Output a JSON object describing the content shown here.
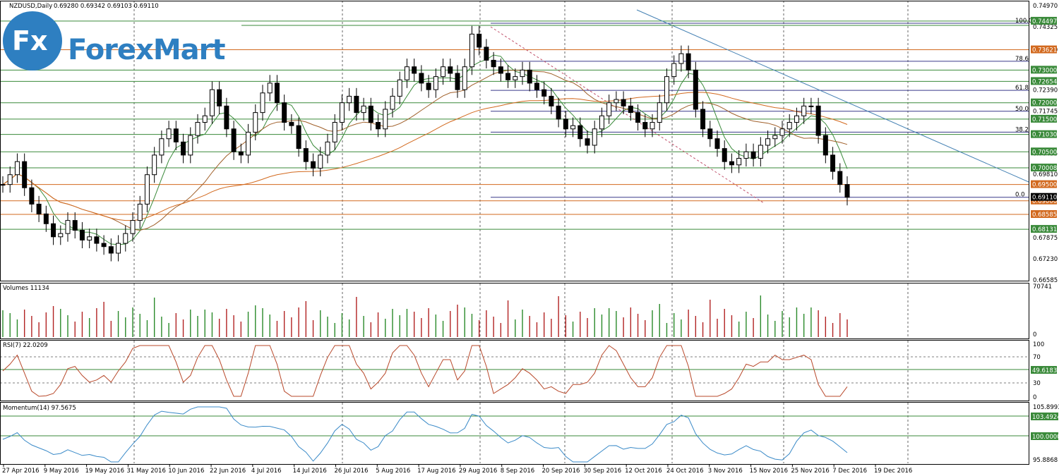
{
  "header": {
    "symbol": "NZDUSD,Daily",
    "ohlc": "0.69280 0.69342 0.69103 0.69110"
  },
  "logo": {
    "text": "ForexMart",
    "badge": "Fx"
  },
  "panels": {
    "volume_label": "Volumes 11134",
    "volume_scale": [
      "70741",
      "0"
    ],
    "rsi_label": "RSI(7) 22.0209",
    "rsi_scale": [
      "100",
      "70",
      "30",
      "0"
    ],
    "rsi_tag": "49.6183",
    "mom_label": "Momentum(14) 97.5675",
    "mom_scale": [
      "105.8993",
      "95.8868"
    ],
    "mom_tags": [
      "103.4924",
      "100.0000"
    ]
  },
  "price_axis": [
    "0.74970",
    "0.74325",
    "0.73620",
    "0.72390",
    "0.71745",
    "0.70455",
    "0.69810",
    "0.67875",
    "0.67230",
    "0.66585"
  ],
  "price_tags": [
    {
      "v": "0.74497",
      "c": "#3a8a3a"
    },
    {
      "v": "0.73621",
      "c": "#d2691e"
    },
    {
      "v": "0.73000",
      "c": "#3a8a3a"
    },
    {
      "v": "0.72654",
      "c": "#3a8a3a"
    },
    {
      "v": "0.72000",
      "c": "#3a8a3a"
    },
    {
      "v": "0.71500",
      "c": "#3a8a3a"
    },
    {
      "v": "0.71030",
      "c": "#3a8a3a"
    },
    {
      "v": "0.70500",
      "c": "#3a8a3a"
    },
    {
      "v": "0.70008",
      "c": "#3a8a3a"
    },
    {
      "v": "0.69500",
      "c": "#d2691e"
    },
    {
      "v": "0.69000",
      "c": "#d2691e"
    },
    {
      "v": "0.68585",
      "c": "#d2691e"
    },
    {
      "v": "0.68131",
      "c": "#3a8a3a"
    },
    {
      "v": "0.69110",
      "c": "#000000"
    }
  ],
  "fib_labels": [
    "100.0",
    "78.6",
    "61.8",
    "50.0",
    "38.2",
    "0.0"
  ],
  "x_axis": [
    "27 Apr 2016",
    "9 May 2016",
    "19 May 2016",
    "31 May 2016",
    "10 Jun 2016",
    "22 Jun 2016",
    "4 Jul 2016",
    "14 Jul 2016",
    "26 Jul 2016",
    "5 Aug 2016",
    "17 Aug 2016",
    "29 Aug 2016",
    "8 Sep 2016",
    "20 Sep 2016",
    "30 Sep 2016",
    "12 Oct 2016",
    "24 Oct 2016",
    "3 Nov 2016",
    "15 Nov 2016",
    "25 Nov 2016",
    "7 Dec 2016",
    "19 Dec 2016"
  ],
  "chart_data": {
    "type": "line",
    "title": "NZDUSD,Daily",
    "ylim": [
      0.6658,
      0.7497
    ],
    "levels": {
      "horizontal": [
        0.74497,
        0.73621,
        0.73,
        0.72654,
        0.72,
        0.715,
        0.7103,
        0.705,
        0.70008,
        0.695,
        0.69,
        0.68585,
        0.68131
      ],
      "fibonacci": {
        "100.0": 0.7443,
        "78.6": 0.7327,
        "61.8": 0.7238,
        "50.0": 0.7174,
        "38.2": 0.711,
        "0.0": 0.6911
      }
    },
    "close_series": [
      0.695,
      0.698,
      0.702,
      0.694,
      0.689,
      0.686,
      0.683,
      0.679,
      0.68,
      0.684,
      0.681,
      0.678,
      0.679,
      0.677,
      0.676,
      0.674,
      0.677,
      0.68,
      0.684,
      0.689,
      0.698,
      0.704,
      0.709,
      0.712,
      0.708,
      0.704,
      0.71,
      0.714,
      0.716,
      0.724,
      0.719,
      0.712,
      0.705,
      0.704,
      0.711,
      0.717,
      0.723,
      0.726,
      0.72,
      0.714,
      0.713,
      0.706,
      0.702,
      0.7,
      0.704,
      0.708,
      0.714,
      0.72,
      0.722,
      0.717,
      0.719,
      0.714,
      0.712,
      0.718,
      0.722,
      0.727,
      0.731,
      0.729,
      0.726,
      0.724,
      0.728,
      0.731,
      0.729,
      0.724,
      0.731,
      0.741,
      0.737,
      0.733,
      0.731,
      0.729,
      0.727,
      0.728,
      0.73,
      0.726,
      0.724,
      0.722,
      0.719,
      0.715,
      0.712,
      0.713,
      0.709,
      0.707,
      0.712,
      0.716,
      0.72,
      0.721,
      0.719,
      0.717,
      0.714,
      0.712,
      0.714,
      0.72,
      0.728,
      0.732,
      0.735,
      0.73,
      0.718,
      0.712,
      0.709,
      0.706,
      0.702,
      0.701,
      0.703,
      0.705,
      0.703,
      0.707,
      0.709,
      0.71,
      0.712,
      0.714,
      0.716,
      0.719,
      0.719,
      0.71,
      0.704,
      0.699,
      0.695,
      0.6911
    ],
    "rsi": {
      "range": [
        0,
        100
      ],
      "levels": [
        70,
        30
      ],
      "last": 22.0209
    },
    "momentum": {
      "range": [
        95.8868,
        105.8993
      ],
      "level": 100,
      "last": 97.5675
    },
    "volume": {
      "max": 70741,
      "last": 11134
    }
  }
}
